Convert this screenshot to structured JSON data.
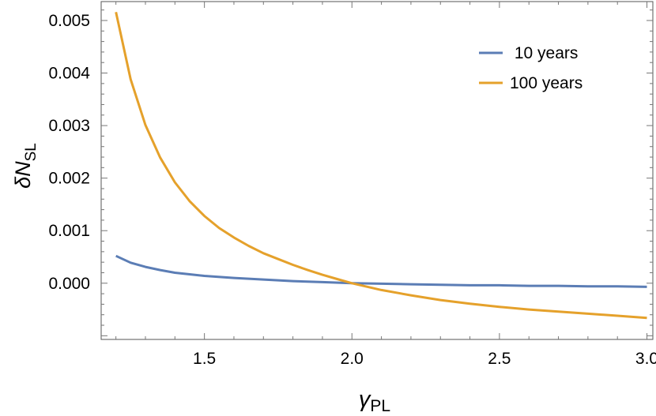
{
  "chart_data": {
    "type": "line",
    "xlabel_main": "γ",
    "xlabel_sub": "PL",
    "ylabel_main": "δN",
    "ylabel_sub": "SL",
    "xlim": [
      1.15,
      3.02
    ],
    "ylim": [
      -0.00107,
      0.00536
    ],
    "xticks": [
      1.5,
      2.0,
      2.5,
      3.0
    ],
    "xtick_labels": [
      "1.5",
      "2.0",
      "2.5",
      "3.0"
    ],
    "yticks": [
      0.0,
      0.001,
      0.002,
      0.003,
      0.004,
      0.005
    ],
    "ytick_labels": [
      "0.000",
      "0.001",
      "0.002",
      "0.003",
      "0.004",
      "0.005"
    ],
    "legend_position": "top-right",
    "series": [
      {
        "name": " 10 years",
        "color": "#5b7db5",
        "x": [
          1.2,
          1.25,
          1.3,
          1.35,
          1.4,
          1.45,
          1.5,
          1.6,
          1.7,
          1.8,
          1.9,
          2.0,
          2.1,
          2.2,
          2.3,
          2.4,
          2.5,
          2.6,
          2.7,
          2.8,
          2.9,
          3.0
        ],
        "y": [
          0.00052,
          0.00039,
          0.00031,
          0.00025,
          0.0002,
          0.00017,
          0.00014,
          0.0001,
          7e-05,
          4e-05,
          2e-05,
          0.0,
          -1e-05,
          -2e-05,
          -3e-05,
          -4e-05,
          -4e-05,
          -5e-05,
          -5e-05,
          -6e-05,
          -6e-05,
          -7e-05
        ]
      },
      {
        "name": "100 years",
        "color": "#e5a12b",
        "x": [
          1.2,
          1.25,
          1.3,
          1.35,
          1.4,
          1.45,
          1.5,
          1.55,
          1.6,
          1.65,
          1.7,
          1.75,
          1.8,
          1.85,
          1.9,
          1.95,
          2.0,
          2.1,
          2.2,
          2.3,
          2.4,
          2.5,
          2.6,
          2.7,
          2.8,
          2.9,
          3.0
        ],
        "y": [
          0.00516,
          0.00388,
          0.00301,
          0.00239,
          0.00192,
          0.00156,
          0.00128,
          0.00105,
          0.00087,
          0.00071,
          0.00057,
          0.00046,
          0.00035,
          0.00025,
          0.00016,
          8e-05,
          0.0,
          -0.00013,
          -0.00023,
          -0.00032,
          -0.00039,
          -0.00045,
          -0.0005,
          -0.00054,
          -0.00058,
          -0.00062,
          -0.00066
        ]
      }
    ]
  }
}
